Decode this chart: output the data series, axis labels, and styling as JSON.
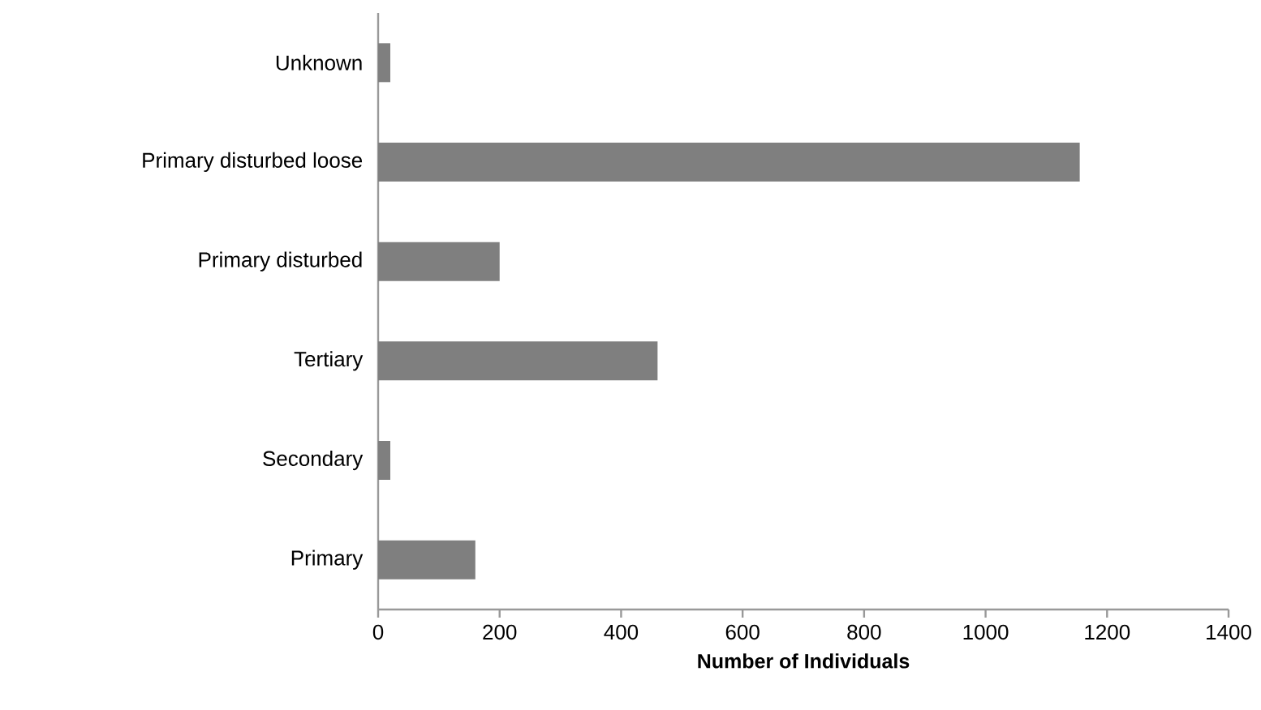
{
  "chart_data": {
    "type": "bar",
    "orientation": "horizontal",
    "xlabel": "Number of Individuals",
    "categories": [
      "Unknown",
      "Primary disturbed loose",
      "Primary disturbed",
      "Tertiary",
      "Secondary",
      "Primary"
    ],
    "values": [
      20,
      1155,
      200,
      460,
      20,
      160
    ],
    "color": "#7f7f7f",
    "xlim": [
      0,
      1400
    ],
    "xticks": [
      0,
      200,
      400,
      600,
      800,
      1000,
      1200,
      1400
    ],
    "grid": false
  }
}
